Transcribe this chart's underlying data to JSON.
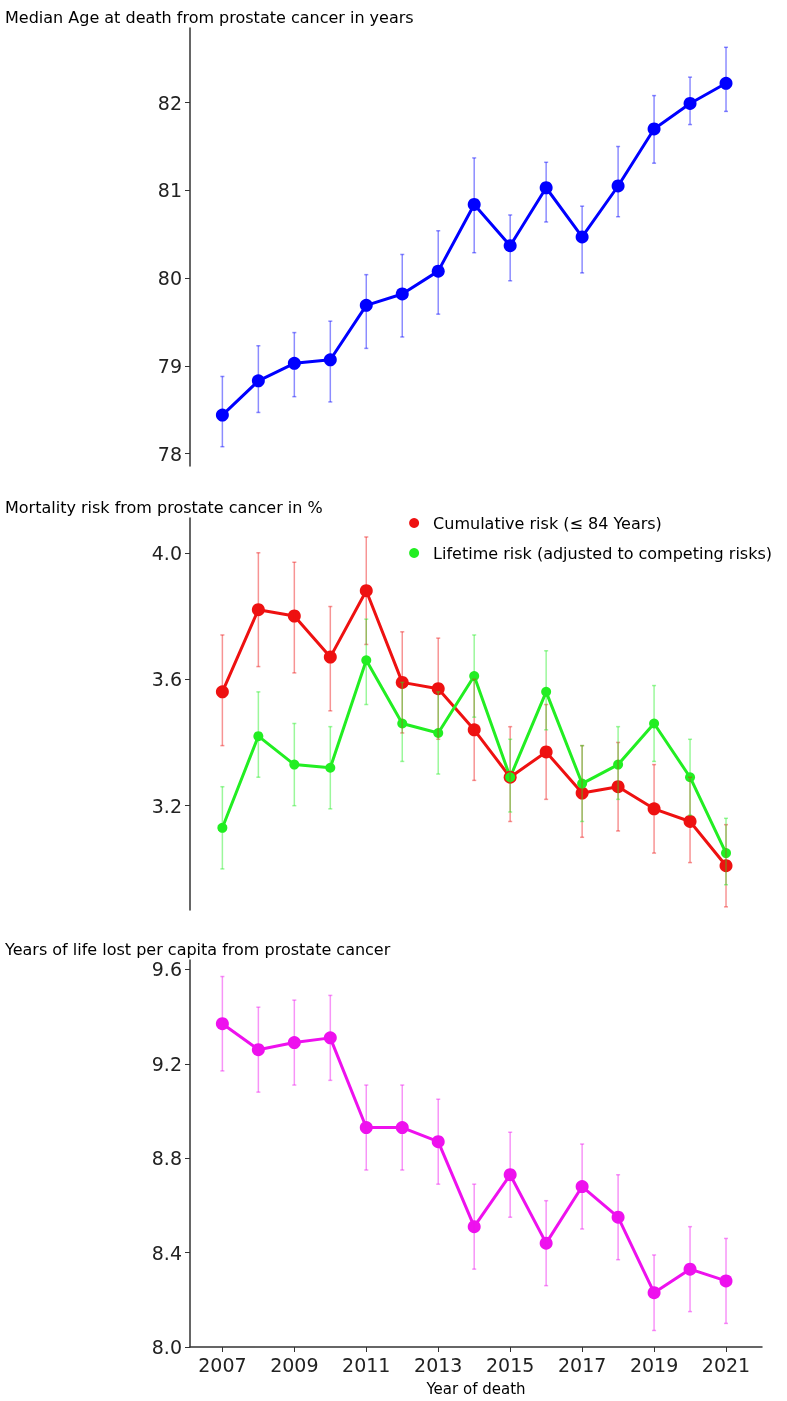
{
  "chart_data": [
    {
      "type": "line",
      "title": "Median Age at death from prostate cancer in years",
      "x": [
        2007,
        2008,
        2009,
        2010,
        2011,
        2012,
        2013,
        2014,
        2015,
        2016,
        2017,
        2018,
        2019,
        2020,
        2021
      ],
      "ylim": [
        77.86,
        82.85
      ],
      "yticks": [
        78,
        79,
        80,
        81,
        82
      ],
      "tick_labels": "y",
      "grid": false,
      "legend": false,
      "marker": "circle",
      "line_style": "solid",
      "series": [
        {
          "color": "#0000ff",
          "values": [
            78.44,
            78.83,
            79.03,
            79.07,
            79.69,
            79.82,
            80.08,
            80.84,
            80.37,
            81.03,
            80.47,
            81.05,
            81.7,
            81.99,
            82.22
          ],
          "errors": [
            [
              78.08,
              78.88
            ],
            [
              78.47,
              79.23
            ],
            [
              78.65,
              79.38
            ],
            [
              78.59,
              79.51
            ],
            [
              79.2,
              80.04
            ],
            [
              79.33,
              80.27
            ],
            [
              79.59,
              80.54
            ],
            [
              80.29,
              81.37
            ],
            [
              79.97,
              80.72
            ],
            [
              80.64,
              81.32
            ],
            [
              80.06,
              80.82
            ],
            [
              80.7,
              81.5
            ],
            [
              81.31,
              82.08
            ],
            [
              81.75,
              82.29
            ],
            [
              81.9,
              82.63
            ]
          ]
        }
      ]
    },
    {
      "type": "line",
      "title": "Mortality risk from prostate cancer in %",
      "x": [
        2007,
        2008,
        2009,
        2010,
        2011,
        2012,
        2013,
        2014,
        2015,
        2016,
        2017,
        2018,
        2019,
        2020,
        2021
      ],
      "ylim": [
        2.87,
        4.11
      ],
      "yticks": [
        {
          "value": 3.2,
          "label": "3.2"
        },
        {
          "value": 3.6,
          "label": "3.6"
        },
        {
          "value": 4,
          "label": "4.0"
        }
      ],
      "tick_labels": "y",
      "grid": false,
      "legend": "top right",
      "marker": "circle",
      "line_style": "solid",
      "series": [
        {
          "name": "Cumulative risk (≤ 84 Years)",
          "color": "#ee1111",
          "values": [
            3.56,
            3.82,
            3.8,
            3.67,
            3.88,
            3.59,
            3.57,
            3.44,
            3.29,
            3.37,
            3.24,
            3.26,
            3.19,
            3.15,
            3.01
          ],
          "errors": [
            [
              3.39,
              3.74
            ],
            [
              3.64,
              4.0
            ],
            [
              3.62,
              3.97
            ],
            [
              3.5,
              3.83
            ],
            [
              3.71,
              4.05
            ],
            [
              3.43,
              3.75
            ],
            [
              3.41,
              3.73
            ],
            [
              3.28,
              3.6
            ],
            [
              3.15,
              3.45
            ],
            [
              3.22,
              3.52
            ],
            [
              3.1,
              3.39
            ],
            [
              3.12,
              3.4
            ],
            [
              3.05,
              3.33
            ],
            [
              3.02,
              3.29
            ],
            [
              2.88,
              3.14
            ]
          ]
        },
        {
          "name": "Lifetime risk (adjusted to competing risks)",
          "color": "#22ee22",
          "values": [
            3.13,
            3.42,
            3.33,
            3.32,
            3.66,
            3.46,
            3.43,
            3.61,
            3.29,
            3.56,
            3.27,
            3.33,
            3.46,
            3.29,
            3.05
          ],
          "errors": [
            [
              3.0,
              3.26
            ],
            [
              3.29,
              3.56
            ],
            [
              3.2,
              3.46
            ],
            [
              3.19,
              3.45
            ],
            [
              3.52,
              3.79
            ],
            [
              3.34,
              3.59
            ],
            [
              3.3,
              3.56
            ],
            [
              3.48,
              3.74
            ],
            [
              3.18,
              3.41
            ],
            [
              3.44,
              3.69
            ],
            [
              3.15,
              3.39
            ],
            [
              3.22,
              3.45
            ],
            [
              3.34,
              3.58
            ],
            [
              3.17,
              3.41
            ],
            [
              2.95,
              3.16
            ]
          ]
        }
      ]
    },
    {
      "type": "line",
      "title": "Years of life lost per capita from prostate cancer",
      "xlabel": "Year of death",
      "x": [
        2007,
        2008,
        2009,
        2010,
        2011,
        2012,
        2013,
        2014,
        2015,
        2016,
        2017,
        2018,
        2019,
        2020,
        2021
      ],
      "xlim": [
        2006.1,
        2022
      ],
      "xticks": [
        2007,
        2009,
        2011,
        2013,
        2015,
        2017,
        2019,
        2021
      ],
      "ylim": [
        8,
        9.64
      ],
      "yticks": [
        {
          "value": 8,
          "label": "8.0"
        },
        {
          "value": 8.4,
          "label": "8.4"
        },
        {
          "value": 8.8,
          "label": "8.8"
        },
        {
          "value": 9.2,
          "label": "9.2"
        },
        {
          "value": 9.6,
          "label": "9.6"
        }
      ],
      "grid": false,
      "legend": false,
      "marker": "circle",
      "line_style": "solid",
      "series": [
        {
          "color": "#ee11ee",
          "values": [
            9.37,
            9.26,
            9.29,
            9.31,
            8.93,
            8.93,
            8.87,
            8.51,
            8.73,
            8.44,
            8.68,
            8.55,
            8.23,
            8.33,
            8.28
          ],
          "errors": [
            [
              9.17,
              9.57
            ],
            [
              9.08,
              9.44
            ],
            [
              9.11,
              9.47
            ],
            [
              9.13,
              9.49
            ],
            [
              8.75,
              9.11
            ],
            [
              8.75,
              9.11
            ],
            [
              8.69,
              9.05
            ],
            [
              8.33,
              8.69
            ],
            [
              8.55,
              8.91
            ],
            [
              8.26,
              8.62
            ],
            [
              8.5,
              8.86
            ],
            [
              8.37,
              8.73
            ],
            [
              8.07,
              8.39
            ],
            [
              8.15,
              8.51
            ],
            [
              8.1,
              8.46
            ]
          ]
        }
      ]
    }
  ]
}
